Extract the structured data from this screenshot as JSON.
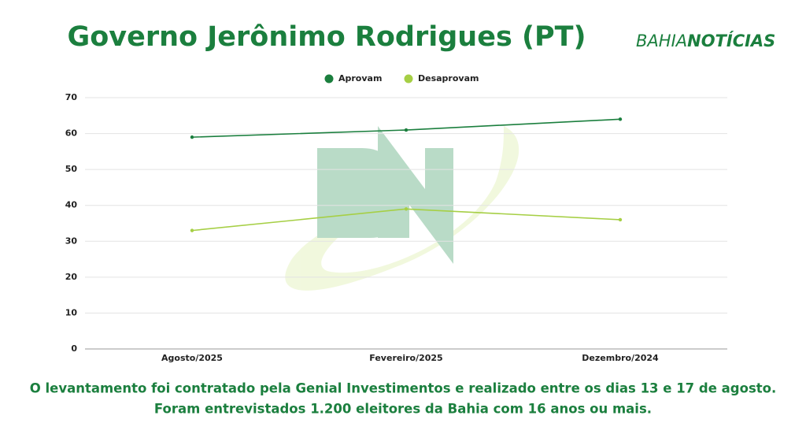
{
  "chart_data": {
    "type": "line",
    "title": "Governo Jerônimo Rodrigues (PT)",
    "categories": [
      "Agosto/2025",
      "Fevereiro/2025",
      "Dezembro/2024"
    ],
    "series": [
      {
        "name": "Aprovam",
        "color": "#1b7f3e",
        "values": [
          59,
          61,
          64
        ]
      },
      {
        "name": "Desaprovam",
        "color": "#a6cf45",
        "values": [
          33,
          39,
          36
        ]
      }
    ],
    "ylim": [
      0,
      70
    ],
    "yticks": [
      0,
      10,
      20,
      30,
      40,
      50,
      60,
      70
    ],
    "grid": true,
    "legend": "top"
  },
  "logo": {
    "part1": "BAHIA",
    "part2": "NOTÍCIAS"
  },
  "footnote": [
    "O levantamento foi contratado pela Genial Investimentos e realizado entre os dias 13 e 17 de agosto.",
    "Foram entrevistados 1.200 eleitores da Bahia com 16 anos ou mais."
  ]
}
